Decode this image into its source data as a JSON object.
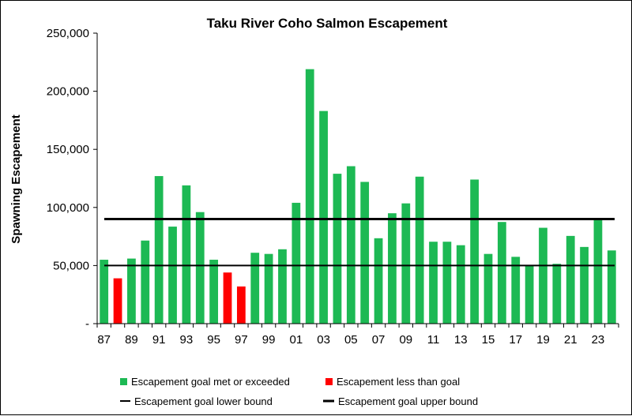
{
  "chart_data": {
    "type": "bar",
    "title": "Taku River Coho Salmon Escapement",
    "ylabel": "Spawning Escapement",
    "xlabel": "",
    "ylim": [
      0,
      250000
    ],
    "yticks": [
      0,
      50000,
      100000,
      150000,
      200000,
      250000
    ],
    "ytick_labels": [
      "-",
      "50,000",
      "100,000",
      "150,000",
      "200,000",
      "250,000"
    ],
    "years": [
      "1987",
      "1988",
      "1989",
      "1990",
      "1991",
      "1992",
      "1993",
      "1994",
      "1995",
      "1996",
      "1997",
      "1998",
      "1999",
      "2000",
      "2001",
      "2002",
      "2003",
      "2004",
      "2005",
      "2006",
      "2007",
      "2008",
      "2009",
      "2010",
      "2011",
      "2012",
      "2013",
      "2014",
      "2015",
      "2016",
      "2017",
      "2018",
      "2019",
      "2020",
      "2021",
      "2022",
      "2023",
      "2024"
    ],
    "xtick_labels": [
      "87",
      "",
      "89",
      "",
      "91",
      "",
      "93",
      "",
      "95",
      "",
      "97",
      "",
      "99",
      "",
      "01",
      "",
      "03",
      "",
      "05",
      "",
      "07",
      "",
      "09",
      "",
      "11",
      "",
      "13",
      "",
      "15",
      "",
      "17",
      "",
      "19",
      "",
      "21",
      "",
      "23",
      ""
    ],
    "values": [
      55000,
      39000,
      56000,
      71500,
      127000,
      83500,
      119000,
      96000,
      55000,
      44000,
      32000,
      61000,
      60000,
      64000,
      104000,
      219000,
      183000,
      129000,
      135500,
      122000,
      73500,
      95000,
      103500,
      126500,
      70500,
      70500,
      67500,
      124000,
      60000,
      87500,
      57500,
      50000,
      82500,
      51500,
      75500,
      66000,
      90000,
      63000
    ],
    "status": [
      "met",
      "below",
      "met",
      "met",
      "met",
      "met",
      "met",
      "met",
      "met",
      "below",
      "below",
      "met",
      "met",
      "met",
      "met",
      "met",
      "met",
      "met",
      "met",
      "met",
      "met",
      "met",
      "met",
      "met",
      "met",
      "met",
      "met",
      "met",
      "met",
      "met",
      "met",
      "met",
      "met",
      "met",
      "met",
      "met",
      "met",
      "met"
    ],
    "goal_lower": 50000,
    "goal_upper": 90000,
    "colors": {
      "met": "#1db954",
      "below": "#ff0000",
      "lines": "#000000"
    },
    "legend": {
      "placement": "bottom",
      "met_label": "Escapement goal met or exceeded",
      "below_label": "Escapement less than goal",
      "lower_label": "Escapement goal lower bound",
      "upper_label": "Escapement goal upper bound"
    },
    "grid": false
  }
}
